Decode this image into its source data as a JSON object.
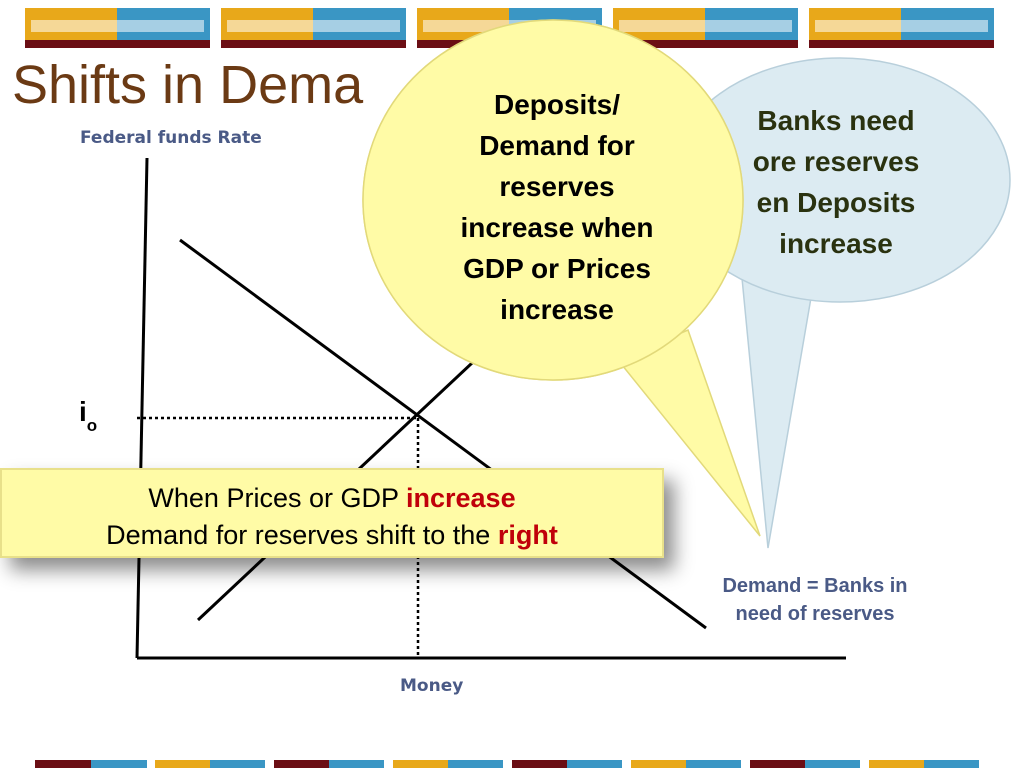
{
  "title": "Shifts in Dema",
  "colors": {
    "title": "#6b3a14",
    "axis_text": "#4a5a86",
    "callout_yellow": "#fffba6",
    "callout_blue": "#dcebf2",
    "highlight": "#c0000a",
    "band_orange": "#e8a81a",
    "band_blue": "#3a96c4",
    "band_maroon": "#6b0e14"
  },
  "diagram": {
    "y_axis_label": "Federal funds Rate",
    "x_axis_label": "Money",
    "eq_rate_label": "i",
    "eq_rate_subscript": "o",
    "demand_label_line1": "Demand = Banks in",
    "demand_label_line2": "need of reserves"
  },
  "callout_banks": {
    "line1": "Banks need",
    "line2": "ore reserves",
    "line3": "en Deposits",
    "line4": "increase"
  },
  "callout_deposits": {
    "line1": "Deposits/",
    "line2": "Demand for",
    "line3": "reserves",
    "line4": "increase when",
    "line5": "GDP or Prices",
    "line6": "increase"
  },
  "info_banner": {
    "line1_prefix": "When Prices or GDP ",
    "line1_highlight": "increase",
    "line2_prefix": "Demand for reserves shift to the ",
    "line2_highlight": "right"
  }
}
